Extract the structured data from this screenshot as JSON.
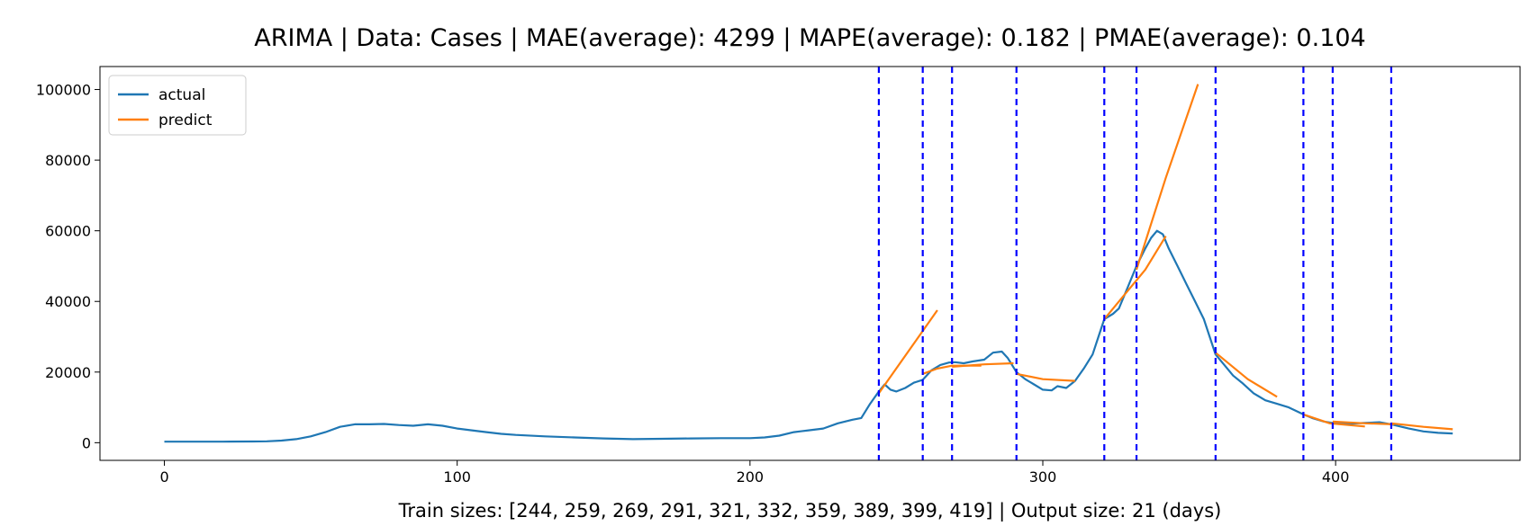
{
  "chart_data": {
    "type": "line",
    "title": "ARIMA | Data: Cases | MAE(average): 4299 | MAPE(average): 0.182 | PMAE(average): 0.104",
    "xlabel": "Train sizes: [244, 259, 269, 291, 321, 332, 359, 389, 399, 419] | Output size: 21 (days)",
    "ylabel": "",
    "xlim": [
      -22,
      463
    ],
    "ylim": [
      -5000,
      106500
    ],
    "x_ticks": [
      0,
      100,
      200,
      300,
      400
    ],
    "y_ticks": [
      0,
      20000,
      40000,
      60000,
      80000,
      100000
    ],
    "grid": false,
    "legend": "top-left",
    "colors": {
      "actual": "#1f77b4",
      "predict": "#ff7f0e",
      "split": "#0000ff"
    },
    "split_lines": [
      244,
      259,
      269,
      291,
      321,
      332,
      359,
      389,
      399,
      419
    ],
    "series": [
      {
        "name": "actual",
        "points": [
          [
            0,
            300
          ],
          [
            10,
            300
          ],
          [
            20,
            300
          ],
          [
            30,
            350
          ],
          [
            35,
            400
          ],
          [
            40,
            600
          ],
          [
            45,
            1000
          ],
          [
            50,
            1800
          ],
          [
            55,
            3000
          ],
          [
            60,
            4500
          ],
          [
            65,
            5200
          ],
          [
            70,
            5200
          ],
          [
            75,
            5300
          ],
          [
            80,
            5000
          ],
          [
            85,
            4800
          ],
          [
            90,
            5200
          ],
          [
            95,
            4800
          ],
          [
            100,
            4000
          ],
          [
            105,
            3500
          ],
          [
            110,
            3000
          ],
          [
            115,
            2500
          ],
          [
            120,
            2200
          ],
          [
            130,
            1800
          ],
          [
            140,
            1500
          ],
          [
            150,
            1200
          ],
          [
            160,
            1000
          ],
          [
            170,
            1100
          ],
          [
            180,
            1200
          ],
          [
            190,
            1300
          ],
          [
            200,
            1300
          ],
          [
            205,
            1500
          ],
          [
            210,
            2000
          ],
          [
            215,
            3000
          ],
          [
            220,
            3500
          ],
          [
            225,
            4000
          ],
          [
            230,
            5500
          ],
          [
            235,
            6500
          ],
          [
            238,
            7000
          ],
          [
            241,
            11000
          ],
          [
            244,
            14500
          ],
          [
            246,
            16500
          ],
          [
            248,
            15000
          ],
          [
            250,
            14500
          ],
          [
            253,
            15500
          ],
          [
            256,
            17000
          ],
          [
            259,
            17800
          ],
          [
            262,
            20500
          ],
          [
            265,
            22000
          ],
          [
            268,
            22700
          ],
          [
            270,
            22800
          ],
          [
            273,
            22500
          ],
          [
            276,
            23000
          ],
          [
            280,
            23500
          ],
          [
            283,
            25500
          ],
          [
            286,
            25800
          ],
          [
            288,
            24000
          ],
          [
            291,
            20000
          ],
          [
            294,
            18000
          ],
          [
            297,
            16500
          ],
          [
            300,
            15000
          ],
          [
            303,
            14800
          ],
          [
            305,
            16000
          ],
          [
            308,
            15500
          ],
          [
            311,
            17500
          ],
          [
            314,
            21000
          ],
          [
            317,
            25000
          ],
          [
            319,
            30000
          ],
          [
            321,
            35000
          ],
          [
            324,
            36500
          ],
          [
            326,
            38000
          ],
          [
            329,
            44000
          ],
          [
            332,
            50000
          ],
          [
            335,
            55000
          ],
          [
            337,
            58000
          ],
          [
            339,
            60000
          ],
          [
            341,
            59000
          ],
          [
            343,
            55000
          ],
          [
            346,
            50000
          ],
          [
            349,
            45000
          ],
          [
            352,
            40000
          ],
          [
            355,
            35000
          ],
          [
            357,
            30000
          ],
          [
            359,
            25000
          ],
          [
            362,
            22000
          ],
          [
            365,
            19000
          ],
          [
            368,
            17000
          ],
          [
            372,
            14000
          ],
          [
            376,
            12000
          ],
          [
            380,
            11000
          ],
          [
            384,
            10000
          ],
          [
            389,
            8000
          ],
          [
            392,
            7000
          ],
          [
            396,
            6000
          ],
          [
            399,
            5600
          ],
          [
            405,
            5400
          ],
          [
            410,
            5600
          ],
          [
            415,
            5800
          ],
          [
            419,
            5200
          ],
          [
            425,
            4000
          ],
          [
            430,
            3200
          ],
          [
            435,
            2800
          ],
          [
            440,
            2600
          ]
        ]
      },
      {
        "name": "predict",
        "segments": [
          [
            [
              244,
              14000
            ],
            [
              264,
              37500
            ]
          ],
          [
            [
              259,
              19500
            ],
            [
              264,
              21000
            ],
            [
              269,
              21800
            ],
            [
              279,
              21800
            ]
          ],
          [
            [
              269,
              21500
            ],
            [
              280,
              22200
            ],
            [
              290,
              22500
            ]
          ],
          [
            [
              291,
              19500
            ],
            [
              300,
              18000
            ],
            [
              311,
              17500
            ]
          ],
          [
            [
              321,
              35000
            ],
            [
              328,
              42000
            ],
            [
              335,
              49000
            ],
            [
              342,
              58500
            ]
          ],
          [
            [
              332,
              49000
            ],
            [
              342,
              75000
            ],
            [
              353,
              101500
            ]
          ],
          [
            [
              359,
              25500
            ],
            [
              370,
              18000
            ],
            [
              380,
              13000
            ]
          ],
          [
            [
              389,
              8000
            ],
            [
              398,
              5500
            ],
            [
              410,
              4600
            ]
          ],
          [
            [
              399,
              6000
            ],
            [
              410,
              5500
            ],
            [
              420,
              5200
            ]
          ],
          [
            [
              419,
              5500
            ],
            [
              430,
              4500
            ],
            [
              440,
              3800
            ]
          ]
        ]
      }
    ]
  }
}
